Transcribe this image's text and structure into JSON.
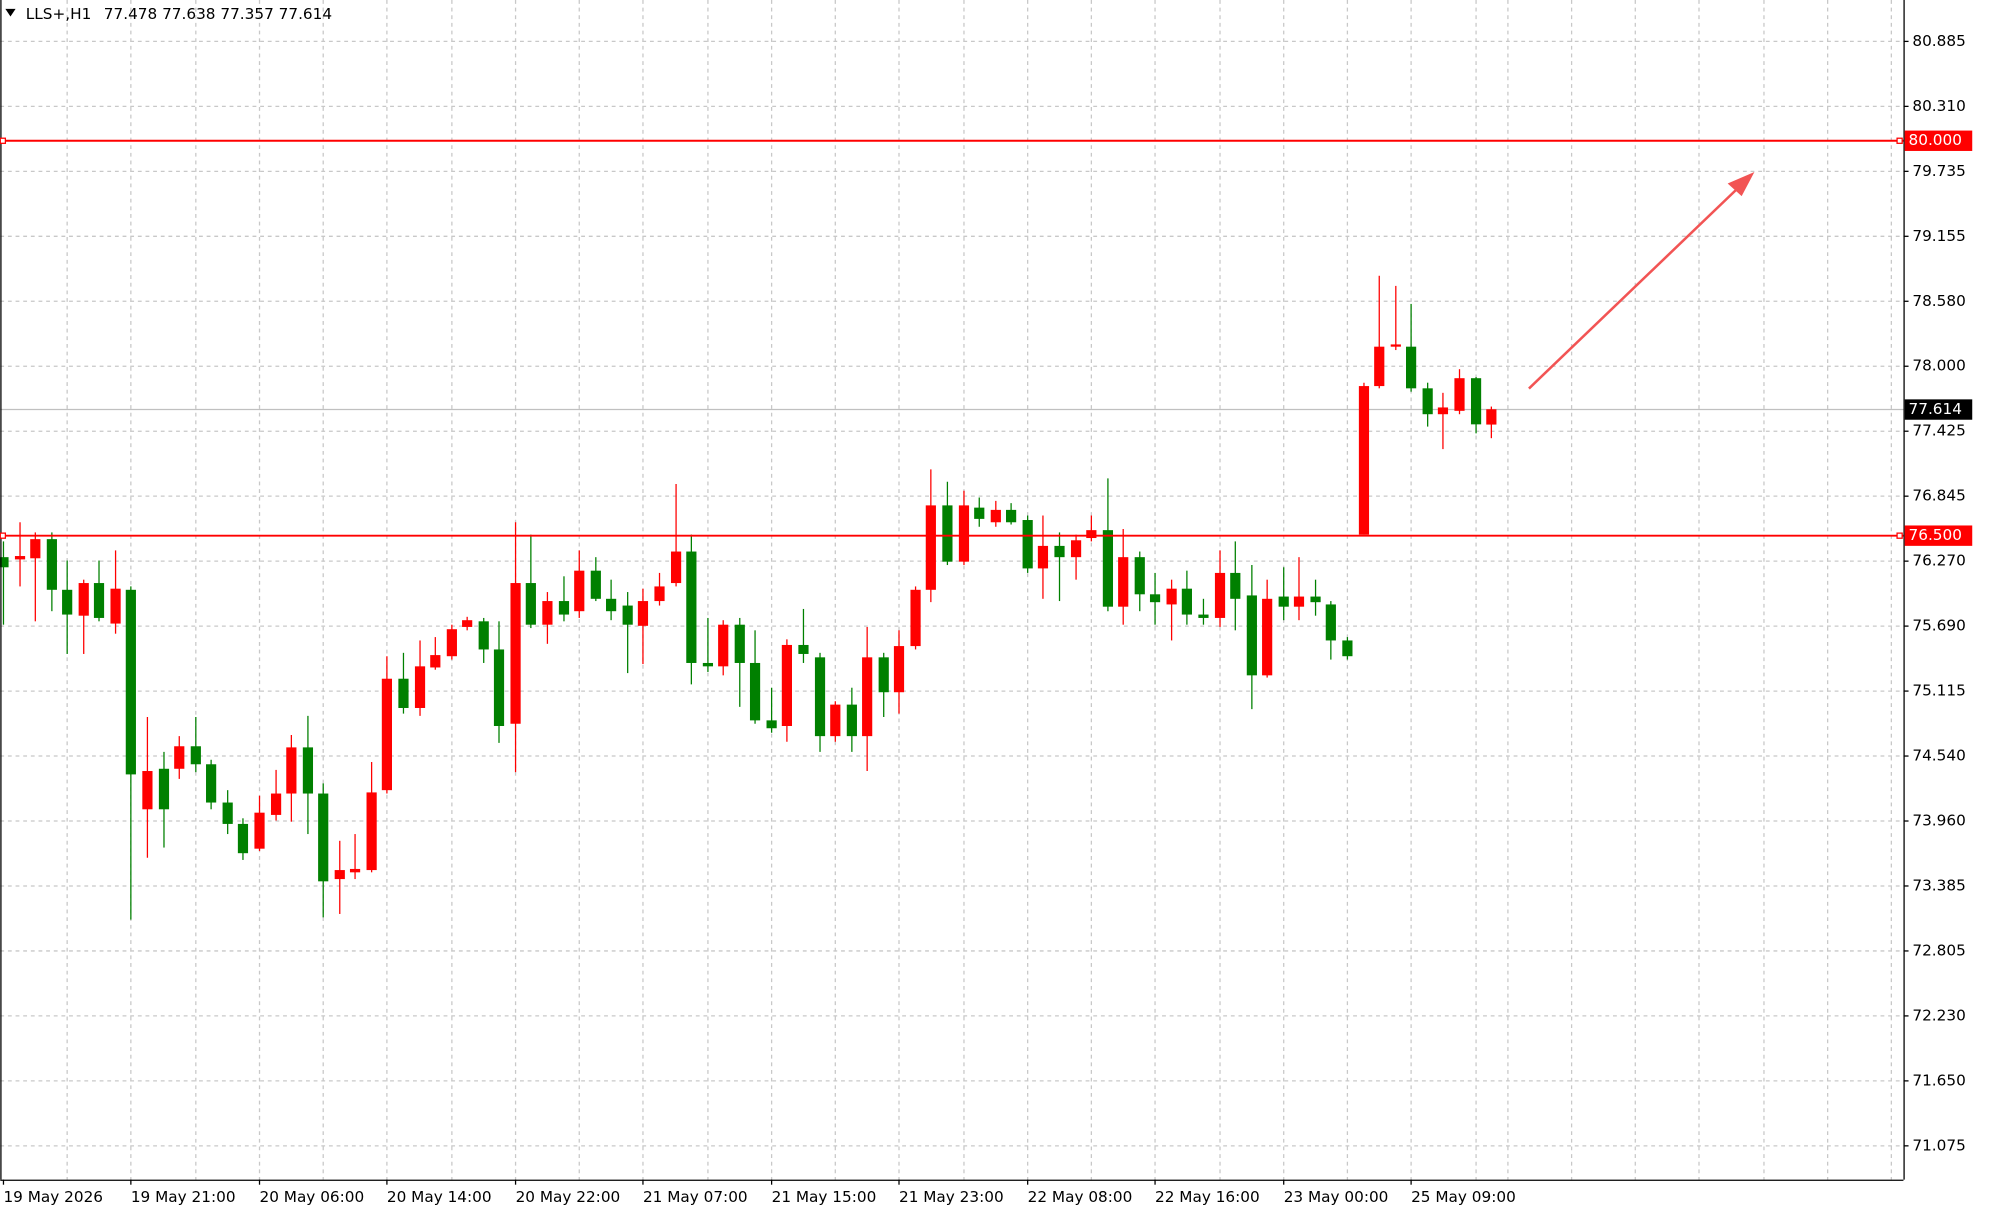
{
  "chart_data": {
    "type": "candlestick",
    "symbol": "LLS+,H1",
    "categories": [
      "19 May 2026",
      null,
      null,
      null,
      null,
      null,
      null,
      null,
      "19 May 21:00",
      null,
      null,
      null,
      null,
      null,
      null,
      null,
      "20 May 06:00",
      null,
      null,
      null,
      null,
      null,
      null,
      null,
      "20 May 14:00",
      null,
      null,
      null,
      null,
      null,
      null,
      null,
      "20 May 22:00",
      null,
      null,
      null,
      null,
      null,
      null,
      null,
      "21 May 07:00",
      null,
      null,
      null,
      null,
      null,
      null,
      null,
      "21 May 15:00",
      null,
      null,
      null,
      null,
      null,
      null,
      null,
      "21 May 23:00",
      null,
      null,
      null,
      null,
      null,
      null,
      null,
      "22 May 08:00",
      null,
      null,
      null,
      null,
      null,
      null,
      null,
      "22 May 16:00",
      null,
      null,
      null,
      null,
      null,
      null,
      null,
      "23 May 00:00",
      null,
      null,
      null,
      null,
      null,
      null,
      null,
      "25 May 09:00",
      null,
      null,
      null,
      null,
      null
    ],
    "open": [
      76.3,
      76.28,
      76.29,
      76.46,
      76.01,
      75.78,
      76.07,
      75.71,
      76.01,
      74.06,
      74.42,
      74.42,
      74.62,
      74.46,
      74.12,
      73.93,
      73.71,
      74.01,
      74.2,
      74.61,
      74.2,
      73.44,
      73.5,
      73.52,
      74.23,
      75.22,
      74.96,
      75.32,
      75.42,
      75.68,
      75.73,
      75.48,
      74.82,
      76.07,
      75.7,
      75.91,
      75.82,
      76.18,
      75.93,
      75.87,
      75.69,
      75.91,
      76.07,
      76.35,
      75.36,
      75.33,
      75.7,
      75.36,
      74.85,
      74.8,
      75.52,
      75.41,
      74.71,
      74.99,
      74.71,
      75.41,
      75.1,
      75.51,
      76.01,
      76.76,
      76.26,
      76.74,
      76.61,
      76.72,
      76.63,
      76.2,
      76.4,
      76.3,
      76.47,
      76.54,
      75.86,
      76.3,
      75.97,
      75.88,
      76.02,
      75.79,
      75.76,
      76.16,
      75.96,
      75.25,
      75.95,
      75.86,
      75.95,
      75.88,
      75.56,
      76.5,
      77.82,
      78.17,
      78.17,
      77.8,
      77.57,
      77.6,
      77.89,
      77.478
    ],
    "high": [
      76.44,
      76.61,
      76.52,
      76.52,
      76.27,
      76.1,
      76.27,
      76.36,
      76.04,
      74.88,
      74.57,
      74.71,
      74.88,
      74.5,
      74.23,
      73.98,
      74.18,
      74.41,
      74.72,
      74.89,
      74.29,
      73.78,
      73.84,
      74.48,
      75.42,
      75.45,
      75.56,
      75.59,
      75.7,
      75.77,
      75.76,
      75.73,
      76.61,
      76.5,
      75.99,
      76.13,
      76.36,
      76.3,
      76.1,
      75.99,
      76.02,
      76.16,
      76.95,
      76.5,
      75.76,
      75.74,
      75.76,
      75.65,
      75.14,
      75.57,
      75.84,
      75.45,
      75.02,
      75.14,
      75.68,
      75.45,
      75.65,
      76.04,
      77.08,
      76.97,
      76.89,
      76.83,
      76.8,
      76.78,
      76.67,
      76.67,
      76.52,
      76.5,
      76.67,
      77.0,
      76.55,
      76.35,
      76.16,
      76.1,
      76.18,
      75.93,
      76.36,
      76.44,
      76.23,
      76.1,
      76.21,
      76.3,
      76.1,
      75.91,
      75.59,
      77.85,
      78.8,
      78.71,
      78.55,
      77.85,
      77.76,
      77.97,
      77.9,
      77.638
    ],
    "low": [
      75.7,
      76.04,
      75.73,
      75.82,
      75.44,
      75.44,
      75.73,
      75.62,
      73.08,
      73.63,
      73.72,
      74.33,
      74.39,
      74.06,
      73.84,
      73.61,
      73.69,
      73.96,
      73.95,
      73.84,
      73.1,
      73.13,
      73.44,
      73.5,
      74.2,
      74.91,
      74.89,
      75.3,
      75.39,
      75.65,
      75.36,
      74.65,
      74.39,
      75.67,
      75.53,
      75.73,
      75.76,
      75.91,
      75.74,
      75.27,
      75.35,
      75.87,
      76.04,
      75.17,
      75.28,
      75.25,
      74.97,
      74.82,
      74.74,
      74.66,
      75.36,
      74.57,
      74.66,
      74.57,
      74.4,
      74.88,
      74.91,
      75.48,
      75.9,
      76.23,
      76.23,
      76.57,
      76.57,
      76.59,
      76.16,
      75.93,
      75.91,
      76.1,
      76.44,
      75.82,
      75.7,
      75.82,
      75.7,
      75.56,
      75.7,
      75.7,
      75.68,
      75.65,
      74.95,
      75.23,
      75.74,
      75.74,
      75.78,
      75.39,
      75.39,
      76.5,
      77.8,
      78.14,
      77.77,
      77.46,
      77.26,
      77.57,
      77.4,
      77.357
    ],
    "close": [
      76.21,
      76.31,
      76.46,
      76.01,
      75.79,
      76.07,
      75.76,
      76.02,
      74.37,
      74.4,
      74.06,
      74.62,
      74.46,
      74.12,
      73.93,
      73.67,
      74.03,
      74.2,
      74.61,
      74.2,
      73.42,
      73.52,
      73.53,
      74.21,
      75.22,
      74.96,
      75.33,
      75.43,
      75.66,
      75.74,
      75.48,
      74.8,
      76.07,
      75.7,
      75.91,
      75.79,
      76.18,
      75.93,
      75.82,
      75.7,
      75.91,
      76.04,
      76.35,
      75.36,
      75.33,
      75.7,
      75.36,
      74.85,
      74.78,
      75.52,
      75.44,
      74.71,
      74.99,
      74.71,
      75.41,
      75.1,
      75.51,
      76.01,
      76.76,
      76.26,
      76.76,
      76.64,
      76.72,
      76.61,
      76.2,
      76.4,
      76.3,
      76.45,
      76.54,
      75.86,
      76.3,
      75.97,
      75.9,
      76.02,
      75.79,
      75.76,
      76.16,
      75.93,
      75.25,
      75.93,
      75.86,
      75.95,
      75.9,
      75.56,
      75.42,
      77.82,
      78.17,
      78.19,
      77.8,
      77.57,
      77.63,
      77.89,
      77.48,
      77.614
    ],
    "up_color": "#ff0000",
    "down_color": "#008000",
    "ylim": [
      70.77,
      81.25
    ],
    "yticks": [
      80.885,
      {
        "value": 80.31,
        "label": "80.310"
      },
      79.735,
      79.155,
      {
        "value": 78.58,
        "label": "78.580"
      },
      {
        "value": 78,
        "label": "78.000"
      },
      77.425,
      76.845,
      {
        "value": 76.27,
        "label": "76.270"
      },
      {
        "value": 75.69,
        "label": "75.690"
      },
      75.115,
      {
        "value": 74.54,
        "label": "74.540"
      },
      {
        "value": 73.96,
        "label": "73.960"
      },
      73.385,
      72.805,
      {
        "value": 72.23,
        "label": "72.230"
      },
      {
        "value": 71.65,
        "label": "71.650"
      },
      71.075
    ],
    "hlines": [
      {
        "value": 80,
        "label": "80.000",
        "color": "#ff0000"
      },
      {
        "value": 76.5,
        "label": "76.500",
        "color": "#ff0000"
      }
    ],
    "grid": true
  }
}
